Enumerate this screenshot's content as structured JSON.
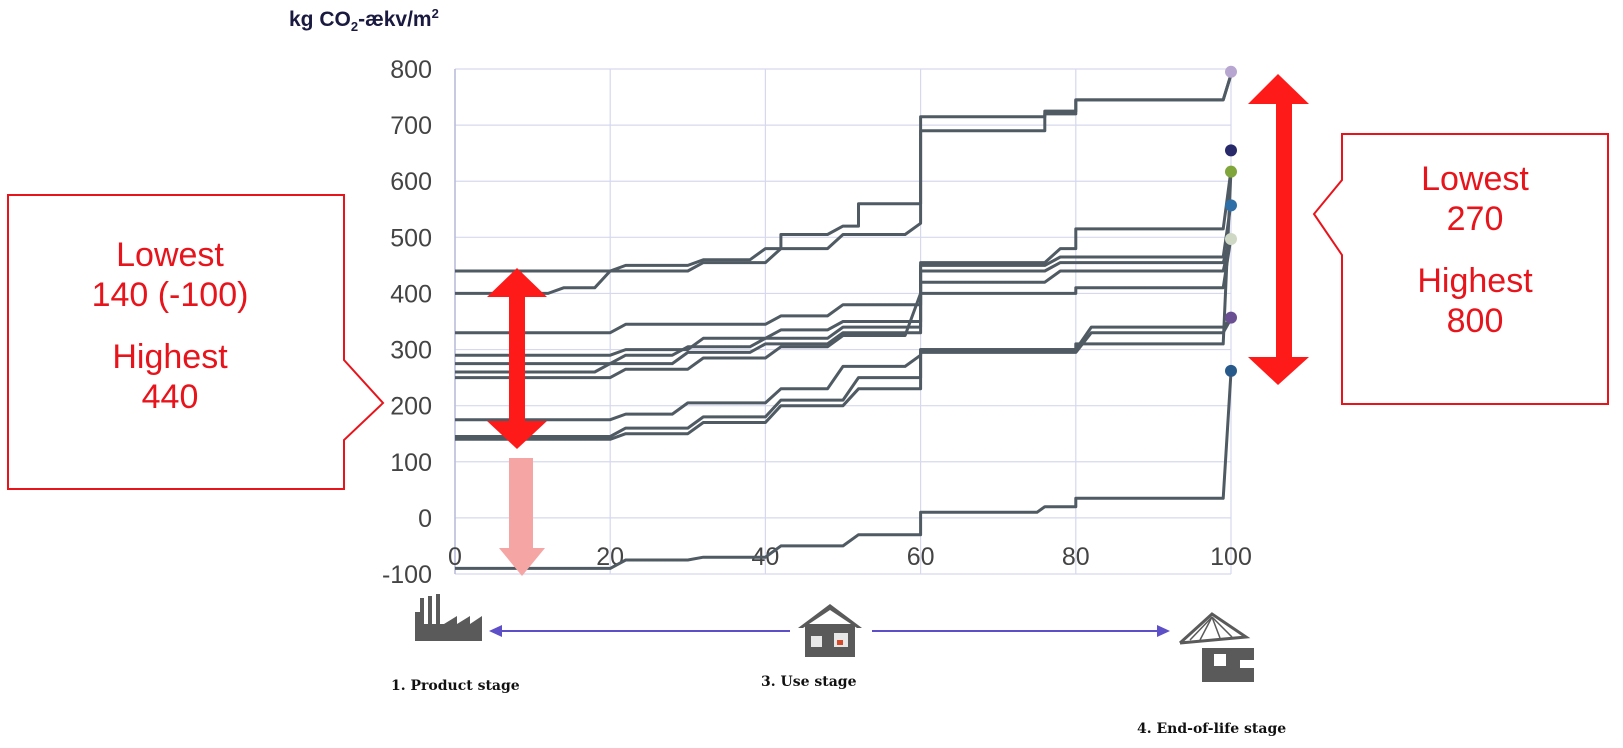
{
  "chart_data": {
    "type": "line",
    "title": "",
    "ylabel_parts": [
      "kg CO",
      "2",
      "-ækv/m",
      "2"
    ],
    "xlim": [
      0,
      100
    ],
    "ylim": [
      -100,
      800
    ],
    "xticks": [
      "0",
      "20",
      "40",
      "60",
      "80",
      "100"
    ],
    "yticks": [
      "-100",
      "0",
      "100",
      "200",
      "300",
      "400",
      "500",
      "600",
      "700",
      "800"
    ],
    "grid": true,
    "line_color": "#4f5a63",
    "series": [
      {
        "values": [
          [
            0,
            440
          ],
          [
            20,
            440
          ],
          [
            22,
            450
          ],
          [
            30,
            450
          ],
          [
            32,
            460
          ],
          [
            38,
            460
          ],
          [
            40,
            480
          ],
          [
            42,
            480
          ],
          [
            42,
            505
          ],
          [
            48,
            505
          ],
          [
            50,
            520
          ],
          [
            52,
            520
          ],
          [
            52,
            560
          ],
          [
            60,
            560
          ],
          [
            60,
            715
          ],
          [
            76,
            715
          ],
          [
            76,
            725
          ],
          [
            80,
            725
          ],
          [
            80,
            745
          ],
          [
            99,
            745
          ],
          [
            100,
            790
          ]
        ]
      },
      {
        "values": [
          [
            0,
            400
          ],
          [
            12,
            400
          ],
          [
            14,
            410
          ],
          [
            18,
            410
          ],
          [
            20,
            440
          ],
          [
            30,
            440
          ],
          [
            32,
            455
          ],
          [
            40,
            455
          ],
          [
            42,
            480
          ],
          [
            48,
            480
          ],
          [
            50,
            505
          ],
          [
            58,
            505
          ],
          [
            60,
            525
          ],
          [
            60,
            690
          ],
          [
            76,
            690
          ],
          [
            76,
            720
          ],
          [
            80,
            720
          ],
          [
            80,
            745
          ],
          [
            99,
            745
          ],
          [
            100,
            790
          ]
        ]
      },
      {
        "values": [
          [
            0,
            330
          ],
          [
            20,
            330
          ],
          [
            22,
            345
          ],
          [
            40,
            345
          ],
          [
            42,
            360
          ],
          [
            48,
            360
          ],
          [
            50,
            380
          ],
          [
            60,
            380
          ],
          [
            60,
            455
          ],
          [
            76,
            455
          ],
          [
            78,
            480
          ],
          [
            80,
            480
          ],
          [
            80,
            515
          ],
          [
            99,
            515
          ],
          [
            100,
            620
          ]
        ]
      },
      {
        "values": [
          [
            0,
            290
          ],
          [
            20,
            290
          ],
          [
            22,
            300
          ],
          [
            30,
            300
          ],
          [
            32,
            320
          ],
          [
            40,
            320
          ],
          [
            42,
            335
          ],
          [
            48,
            335
          ],
          [
            50,
            350
          ],
          [
            60,
            350
          ],
          [
            60,
            450
          ],
          [
            76,
            450
          ],
          [
            78,
            465
          ],
          [
            99,
            465
          ],
          [
            100,
            560
          ]
        ]
      },
      {
        "values": [
          [
            0,
            275
          ],
          [
            20,
            275
          ],
          [
            22,
            290
          ],
          [
            28,
            290
          ],
          [
            30,
            305
          ],
          [
            38,
            305
          ],
          [
            40,
            320
          ],
          [
            48,
            320
          ],
          [
            50,
            340
          ],
          [
            60,
            340
          ],
          [
            60,
            440
          ],
          [
            76,
            440
          ],
          [
            78,
            455
          ],
          [
            99,
            455
          ],
          [
            100,
            500
          ]
        ]
      },
      {
        "values": [
          [
            0,
            260
          ],
          [
            18,
            260
          ],
          [
            20,
            275
          ],
          [
            28,
            275
          ],
          [
            30,
            295
          ],
          [
            38,
            295
          ],
          [
            40,
            310
          ],
          [
            48,
            310
          ],
          [
            50,
            330
          ],
          [
            60,
            330
          ],
          [
            60,
            420
          ],
          [
            76,
            420
          ],
          [
            78,
            440
          ],
          [
            99,
            440
          ],
          [
            100,
            500
          ]
        ]
      },
      {
        "values": [
          [
            0,
            250
          ],
          [
            20,
            250
          ],
          [
            22,
            265
          ],
          [
            30,
            265
          ],
          [
            32,
            285
          ],
          [
            40,
            285
          ],
          [
            42,
            305
          ],
          [
            48,
            305
          ],
          [
            50,
            325
          ],
          [
            58,
            325
          ],
          [
            60,
            400
          ],
          [
            80,
            400
          ],
          [
            80,
            410
          ],
          [
            99,
            410
          ],
          [
            100,
            500
          ]
        ]
      },
      {
        "values": [
          [
            0,
            175
          ],
          [
            20,
            175
          ],
          [
            22,
            185
          ],
          [
            28,
            185
          ],
          [
            30,
            205
          ],
          [
            40,
            205
          ],
          [
            42,
            230
          ],
          [
            48,
            230
          ],
          [
            50,
            270
          ],
          [
            58,
            270
          ],
          [
            60,
            290
          ],
          [
            60,
            300
          ],
          [
            80,
            300
          ],
          [
            82,
            340
          ],
          [
            99,
            340
          ],
          [
            100,
            355
          ]
        ]
      },
      {
        "values": [
          [
            0,
            145
          ],
          [
            20,
            145
          ],
          [
            22,
            160
          ],
          [
            30,
            160
          ],
          [
            32,
            180
          ],
          [
            40,
            180
          ],
          [
            42,
            210
          ],
          [
            50,
            210
          ],
          [
            52,
            250
          ],
          [
            60,
            250
          ],
          [
            60,
            295
          ],
          [
            80,
            295
          ],
          [
            82,
            330
          ],
          [
            99,
            330
          ],
          [
            100,
            355
          ]
        ]
      },
      {
        "values": [
          [
            0,
            140
          ],
          [
            20,
            140
          ],
          [
            22,
            150
          ],
          [
            30,
            150
          ],
          [
            32,
            170
          ],
          [
            40,
            170
          ],
          [
            42,
            200
          ],
          [
            50,
            200
          ],
          [
            52,
            230
          ],
          [
            60,
            230
          ],
          [
            60,
            300
          ],
          [
            80,
            300
          ],
          [
            80,
            310
          ],
          [
            99,
            310
          ],
          [
            100,
            620
          ]
        ]
      },
      {
        "values": [
          [
            0,
            -90
          ],
          [
            20,
            -90
          ],
          [
            22,
            -75
          ],
          [
            30,
            -75
          ],
          [
            32,
            -70
          ],
          [
            40,
            -70
          ],
          [
            42,
            -50
          ],
          [
            50,
            -50
          ],
          [
            52,
            -30
          ],
          [
            60,
            -30
          ],
          [
            60,
            10
          ],
          [
            75,
            10
          ],
          [
            76,
            20
          ],
          [
            80,
            20
          ],
          [
            80,
            35
          ],
          [
            99,
            35
          ],
          [
            100,
            260
          ]
        ]
      }
    ],
    "end_markers": [
      {
        "y": 795,
        "color": "#b6a6d0"
      },
      {
        "y": 655,
        "color": "#27296b"
      },
      {
        "y": 617,
        "color": "#7fa53b"
      },
      {
        "y": 557,
        "color": "#2f6fa8"
      },
      {
        "y": 497,
        "color": "#cfd8c4"
      },
      {
        "y": 357,
        "color": "#6b4f93"
      },
      {
        "y": 262,
        "color": "#275a8a"
      }
    ]
  },
  "annotations": {
    "left": {
      "line1": "Lowest",
      "line2": "140 (-100)",
      "line3": "Highest",
      "line4": "440"
    },
    "right": {
      "line1": "Lowest",
      "line2": "270",
      "line3": "Highest",
      "line4": "800"
    }
  },
  "stages": {
    "product": "1. Product stage",
    "use": "3. Use stage",
    "eol": "4. End-of-life stage"
  },
  "colors": {
    "accent": "#ff1a1a",
    "arrow_light": "#f6a5a5",
    "callout_border": "#e8141c",
    "stage_arrow": "#5d4fc7",
    "grid": "#d6d8ee"
  }
}
